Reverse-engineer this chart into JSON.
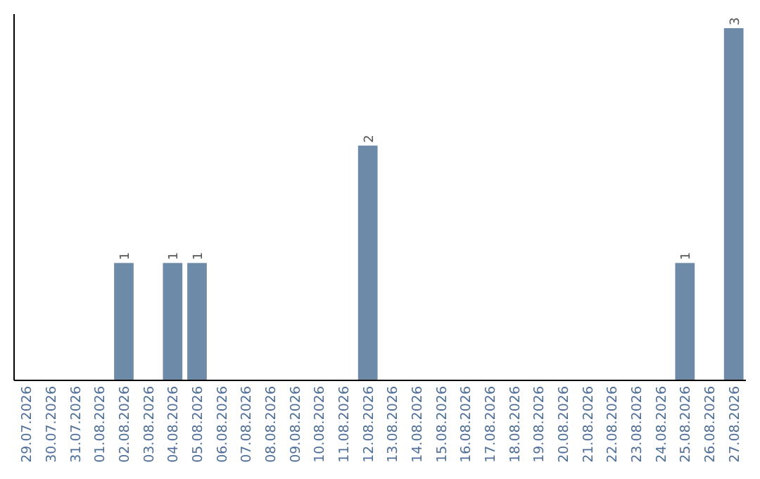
{
  "chart_data": {
    "type": "bar",
    "categories": [
      "29.07.2026",
      "30.07.2026",
      "31.07.2026",
      "01.08.2026",
      "02.08.2026",
      "03.08.2026",
      "04.08.2026",
      "05.08.2026",
      "06.08.2026",
      "07.08.2026",
      "08.08.2026",
      "09.08.2026",
      "10.08.2026",
      "11.08.2026",
      "12.08.2026",
      "13.08.2026",
      "14.08.2026",
      "15.08.2026",
      "16.08.2026",
      "17.08.2026",
      "18.08.2026",
      "19.08.2026",
      "20.08.2026",
      "21.08.2026",
      "22.08.2026",
      "23.08.2026",
      "24.08.2026",
      "25.08.2026",
      "26.08.2026",
      "27.08.2026"
    ],
    "values": [
      0,
      0,
      0,
      0,
      1,
      0,
      1,
      1,
      0,
      0,
      0,
      0,
      0,
      0,
      2,
      0,
      0,
      0,
      0,
      0,
      0,
      0,
      0,
      0,
      0,
      0,
      0,
      1,
      0,
      3
    ],
    "value_labels": [
      null,
      null,
      null,
      null,
      "1",
      null,
      "1",
      "1",
      null,
      null,
      null,
      null,
      null,
      null,
      "2",
      null,
      null,
      null,
      null,
      null,
      null,
      null,
      null,
      null,
      null,
      null,
      null,
      "1",
      null,
      "3"
    ],
    "color": "#6d8ba8"
  }
}
